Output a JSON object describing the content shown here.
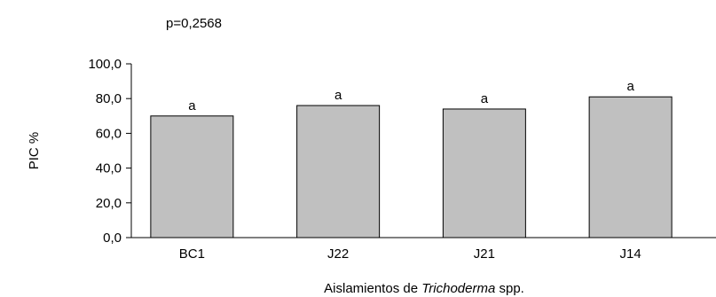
{
  "chart_data": {
    "type": "bar",
    "annotation": "p=0,2568",
    "categories": [
      "BC1",
      "J22",
      "J21",
      "J14"
    ],
    "values": [
      70,
      76,
      74,
      81
    ],
    "bar_letters": [
      "a",
      "a",
      "a",
      "a"
    ],
    "bar_color": "#c0c0c0",
    "bar_edge_color": "#000000",
    "ylabel": "PIC %",
    "xlabel_parts": [
      "Aislamientos de ",
      "Trichoderma",
      " spp."
    ],
    "ylim": [
      0,
      100
    ],
    "yticks": [
      0,
      20,
      40,
      60,
      80,
      100
    ],
    "ytick_labels": [
      "0,0",
      "20,0",
      "40,0",
      "60,0",
      "80,0",
      "100,0"
    ],
    "grid": false
  }
}
